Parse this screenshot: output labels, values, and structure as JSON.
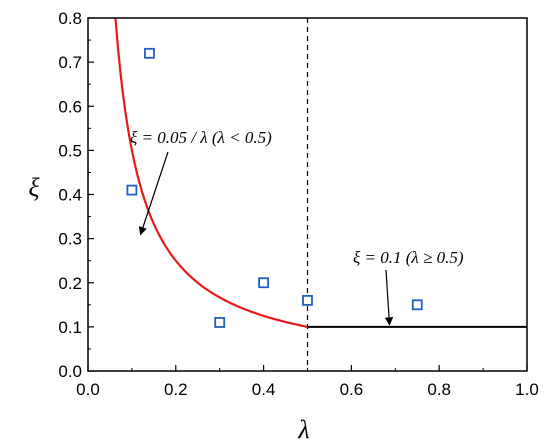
{
  "chart_data": {
    "type": "scatter",
    "xlabel": "λ",
    "ylabel": "ξ",
    "xlim": [
      0.0,
      1.0
    ],
    "ylim": [
      0.0,
      0.8
    ],
    "x_ticks": [
      "0.0",
      "0.2",
      "0.4",
      "0.6",
      "0.8",
      "1.0"
    ],
    "y_ticks": [
      "0.0",
      "0.1",
      "0.2",
      "0.3",
      "0.4",
      "0.5",
      "0.6",
      "0.7",
      "0.8"
    ],
    "x_tick_values": [
      0.0,
      0.2,
      0.4,
      0.6,
      0.8,
      1.0
    ],
    "y_tick_values": [
      0.0,
      0.1,
      0.2,
      0.3,
      0.4,
      0.5,
      0.6,
      0.7,
      0.8
    ],
    "points": [
      {
        "x": 0.1,
        "y": 0.41
      },
      {
        "x": 0.14,
        "y": 0.72
      },
      {
        "x": 0.3,
        "y": 0.11
      },
      {
        "x": 0.4,
        "y": 0.2
      },
      {
        "x": 0.5,
        "y": 0.16
      },
      {
        "x": 0.75,
        "y": 0.15
      }
    ],
    "point_color": "#1f5fbf",
    "curves": [
      {
        "formula": "ξ = 0.05 / λ",
        "x_range": [
          0.0625,
          0.5
        ],
        "color": "#e41a1c"
      },
      {
        "formula": "ξ = 0.1",
        "x_range": [
          0.5,
          1.0
        ],
        "color": "#000000"
      }
    ],
    "reference_line": {
      "x": 0.5,
      "style": "dashed"
    },
    "annotations": [
      {
        "text": "ξ = 0.05 / λ  (λ < 0.5)",
        "arrow_to": [
          0.115,
          0.3
        ]
      },
      {
        "text": "ξ = 0.1  (λ ≥ 0.5)",
        "arrow_to": [
          0.68,
          0.1
        ]
      }
    ]
  }
}
